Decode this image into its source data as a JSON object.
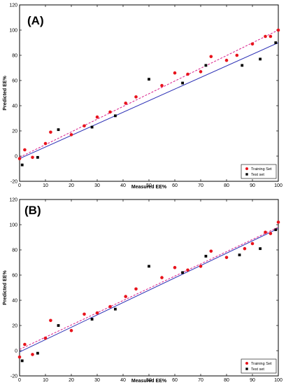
{
  "chart_data": [
    {
      "type": "scatter",
      "panel_label": "(A)",
      "xlabel": "Measured EE%",
      "ylabel": "Predicted EE%",
      "xlim": [
        0,
        100
      ],
      "ylim": [
        -20,
        120
      ],
      "xticks": [
        0,
        10,
        20,
        30,
        40,
        50,
        60,
        70,
        80,
        90,
        100
      ],
      "yticks": [
        -20,
        0,
        20,
        40,
        60,
        80,
        100,
        120
      ],
      "legend_position": "bottom-right",
      "series": [
        {
          "name": "Training Set",
          "color": "#e8141c",
          "marker": "circle",
          "x": [
            0,
            2,
            5,
            10,
            12,
            20,
            25,
            30,
            35,
            41,
            45,
            55,
            60,
            65,
            70,
            74,
            80,
            84,
            90,
            95,
            97,
            100
          ],
          "y": [
            -2,
            5,
            -1,
            10,
            19,
            17,
            24,
            31,
            35,
            42,
            47,
            56,
            66,
            65,
            67,
            79,
            76,
            80,
            89,
            95,
            95,
            100
          ]
        },
        {
          "name": "Test set",
          "color": "#000000",
          "marker": "square",
          "x": [
            1,
            7,
            15,
            28,
            37,
            50,
            63,
            72,
            86,
            93,
            99
          ],
          "y": [
            -7,
            -1,
            21,
            23,
            32,
            61,
            58,
            72,
            72,
            77,
            90
          ]
        }
      ],
      "fit_lines": [
        {
          "series": "Training Set",
          "style": "dashed",
          "color": "#d81b8a",
          "x": [
            0,
            100
          ],
          "y": [
            -1,
            100
          ]
        },
        {
          "series": "Test set",
          "style": "solid",
          "color": "#2b2fb5",
          "x": [
            0,
            100
          ],
          "y": [
            -2,
            90
          ]
        }
      ]
    },
    {
      "type": "scatter",
      "panel_label": "(B)",
      "xlabel": "Measured EE%",
      "ylabel": "Predicted EE%",
      "xlim": [
        0,
        100
      ],
      "ylim": [
        -20,
        120
      ],
      "xticks": [
        0,
        10,
        20,
        30,
        40,
        50,
        60,
        70,
        80,
        90,
        100
      ],
      "yticks": [
        -20,
        0,
        20,
        40,
        60,
        80,
        100,
        120
      ],
      "legend_position": "bottom-right",
      "series": [
        {
          "name": "Training Set",
          "color": "#e8141c",
          "marker": "circle",
          "x": [
            0,
            2,
            5,
            10,
            12,
            20,
            25,
            30,
            35,
            41,
            45,
            55,
            60,
            65,
            70,
            74,
            80,
            87,
            90,
            95,
            97,
            100
          ],
          "y": [
            -5,
            5,
            -3,
            10,
            24,
            16,
            29,
            30,
            35,
            43,
            49,
            58,
            66,
            64,
            67,
            79,
            74,
            81,
            85,
            94,
            93,
            102
          ]
        },
        {
          "name": "Test set",
          "color": "#000000",
          "marker": "square",
          "x": [
            1,
            7,
            15,
            28,
            37,
            50,
            63,
            72,
            85,
            93,
            99
          ],
          "y": [
            -8,
            -2,
            20,
            25,
            33,
            67,
            62,
            75,
            76,
            81,
            96
          ]
        }
      ],
      "fit_lines": [
        {
          "series": "Training Set",
          "style": "dashed",
          "color": "#d81b8a",
          "x": [
            0,
            100
          ],
          "y": [
            1,
            98
          ]
        },
        {
          "series": "Test set",
          "style": "solid",
          "color": "#2b2fb5",
          "x": [
            0,
            100
          ],
          "y": [
            -1,
            97
          ]
        }
      ]
    }
  ]
}
